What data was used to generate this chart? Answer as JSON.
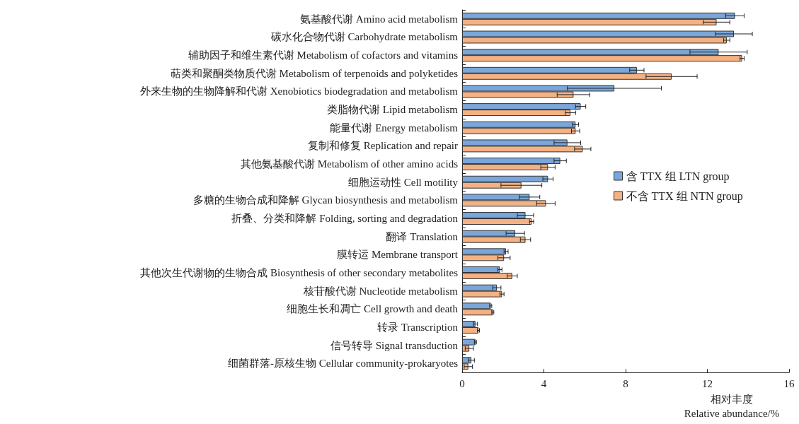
{
  "chart_data": {
    "type": "bar",
    "orientation": "horizontal",
    "xlabel": "相对丰度\nRelative abundance/%",
    "categories": [
      "氨基酸代谢 Amino acid metabolism",
      "碳水化合物代谢 Carbohydrate metabolism",
      "辅助因子和维生素代谢 Metabolism of cofactors and vitamins",
      "萜类和聚酮类物质代谢 Metabolism of terpenoids and polyketides",
      "外来生物的生物降解和代谢 Xenobiotics biodegradation and metabolism",
      "类脂物代谢 Lipid metabolism",
      "能量代谢 Energy metabolism",
      "复制和修复 Replication and repair",
      "其他氨基酸代谢 Metabolism of other amino acids",
      "细胞运动性 Cell motility",
      "多糖的生物合成和降解 Glycan biosynthesis and metabolism",
      "折叠、分类和降解 Folding, sorting and degradation",
      "翻译 Translation",
      "膜转运 Membrane transport",
      "其他次生代谢物的生物合成 Biosynthesis of other secondary metabolites",
      "核苷酸代谢 Nucleotide metabolism",
      "细胞生长和凋亡 Cell growth and death",
      "转录 Transcription",
      "信号转导 Signal transduction",
      "细菌群落-原核生物 Cellular community-prokaryotes"
    ],
    "series": [
      {
        "name": "含 TTX 组 LTN group",
        "color": "#7aa6d9",
        "values": [
          13.35,
          13.3,
          12.55,
          8.55,
          7.45,
          5.8,
          5.55,
          5.15,
          4.8,
          4.2,
          3.3,
          3.1,
          2.6,
          2.15,
          1.85,
          1.7,
          1.4,
          0.65,
          0.65,
          0.45
        ],
        "errors": [
          0.45,
          0.9,
          1.4,
          0.35,
          2.3,
          0.25,
          0.15,
          0.65,
          0.3,
          0.25,
          0.5,
          0.4,
          0.45,
          0.1,
          0.1,
          0.2,
          0.05,
          0.1,
          0.05,
          0.15
        ]
      },
      {
        "name": "不含 TTX 组 NTN group",
        "color": "#f4b183",
        "values": [
          12.45,
          12.95,
          13.7,
          10.25,
          5.45,
          5.3,
          5.55,
          5.9,
          4.2,
          2.9,
          4.1,
          3.4,
          3.1,
          2.05,
          2.45,
          1.95,
          1.5,
          0.8,
          0.35,
          0.3
        ],
        "errors": [
          0.65,
          0.15,
          0.1,
          1.25,
          0.8,
          0.25,
          0.2,
          0.4,
          0.35,
          1.0,
          0.45,
          0.1,
          0.25,
          0.3,
          0.25,
          0.1,
          0.05,
          0.05,
          0.2,
          0.2
        ]
      }
    ],
    "xlim": [
      0,
      16
    ],
    "xticks": [
      0,
      4,
      8,
      12,
      16
    ],
    "grid": false,
    "legend": "right"
  }
}
